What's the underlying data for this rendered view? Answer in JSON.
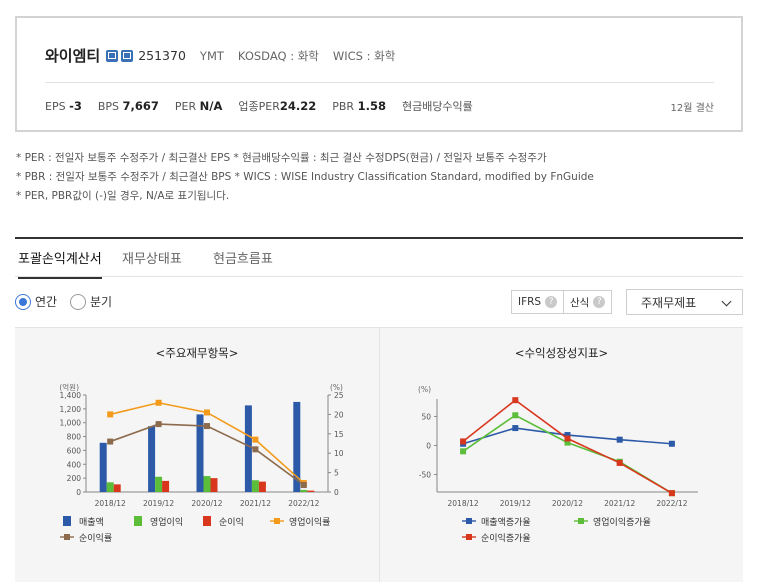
{
  "company": {
    "name": "와이엠티",
    "icons": [
      "doc-icon",
      "building-icon"
    ],
    "code": "251370",
    "ticker": "YMT",
    "market": "KOSDAQ : 화학",
    "wics": "WICS : 화학"
  },
  "metrics": [
    {
      "label": "EPS",
      "value": "-3"
    },
    {
      "label": "BPS",
      "value": "7,667"
    },
    {
      "label": "PER",
      "value": "N/A"
    },
    {
      "label": "업종PER",
      "value": "24.22"
    },
    {
      "label": "PBR",
      "value": "1.58"
    },
    {
      "label": "현금배당수익률",
      "value": ""
    }
  ],
  "fiscal_note": "12월 결산",
  "notes": [
    "* PER : 전일자 보통주 수정주가 / 최근결산 EPS * 현금배당수익률 : 최근 결산 수정DPS(현금) / 전일자 보통주 수정주가",
    "* PBR : 전일자 보통주 수정주가 / 최근결산 BPS * WICS : WISE Industry Classification Standard, modified by FnGuide",
    "* PER, PBR값이 (-)일 경우, N/A로 표기됩니다."
  ],
  "tabs": [
    "포괄손익계산서",
    "재무상태표",
    "현금흐름표"
  ],
  "period_options": [
    {
      "label": "연간",
      "selected": true
    },
    {
      "label": "분기",
      "selected": false
    }
  ],
  "chips": [
    "IFRS",
    "산식"
  ],
  "help_glyph": "?",
  "select_value": "주재무제표",
  "colors": {
    "blue": "#2c5aa8",
    "green": "#5bbd3a",
    "red": "#d8371e",
    "orange": "#f39a1b",
    "brown": "#8c6a4c"
  },
  "chart_data": [
    {
      "type": "bar",
      "title": "<주요재무항목>",
      "left_unit": "(억원)",
      "right_unit": "(%)",
      "categories": [
        "2018/12",
        "2019/12",
        "2020/12",
        "2021/12",
        "2022/12"
      ],
      "ylim": [
        0,
        1400
      ],
      "yticks": [
        0,
        200,
        400,
        600,
        800,
        1000,
        1200,
        1400
      ],
      "ytick_labels": [
        "0",
        "200",
        "400",
        "600",
        "800",
        "1,000",
        "1,200",
        "1,400"
      ],
      "y2lim": [
        0,
        25
      ],
      "y2ticks": [
        0,
        5,
        10,
        15,
        20,
        25
      ],
      "series": [
        {
          "name": "매출액",
          "type": "bar",
          "axis": "left",
          "color": "#2c5aa8",
          "values": [
            710,
            950,
            1120,
            1250,
            1300
          ]
        },
        {
          "name": "영업이익",
          "type": "bar",
          "axis": "left",
          "color": "#5bbd3a",
          "values": [
            140,
            220,
            230,
            170,
            30
          ]
        },
        {
          "name": "순이익",
          "type": "bar",
          "axis": "left",
          "color": "#d8371e",
          "values": [
            110,
            160,
            200,
            150,
            20
          ]
        },
        {
          "name": "영업이익률",
          "type": "line",
          "axis": "right",
          "color": "#f39a1b",
          "values": [
            20,
            23,
            20.5,
            13.5,
            2.3
          ]
        },
        {
          "name": "순이익률",
          "type": "line",
          "axis": "right",
          "color": "#8c6a4c",
          "values": [
            13,
            17.5,
            17,
            11,
            1.8
          ]
        }
      ],
      "legend_position": "bottom"
    },
    {
      "type": "line",
      "title": "<수익성장성지표>",
      "unit": "(%)",
      "categories": [
        "2018/12",
        "2019/12",
        "2020/12",
        "2021/12",
        "2022/12"
      ],
      "ylim": [
        -80,
        80
      ],
      "yticks": [
        -50,
        0,
        50
      ],
      "series": [
        {
          "name": "매출액증가율",
          "color": "#2c5aa8",
          "values": [
            3,
            30,
            18,
            10,
            3
          ]
        },
        {
          "name": "영업이익증가율",
          "color": "#5bbd3a",
          "values": [
            -10,
            52,
            5,
            -28,
            -82
          ]
        },
        {
          "name": "순이익증가율",
          "color": "#d8371e",
          "values": [
            7,
            78,
            12,
            -30,
            -82
          ]
        }
      ],
      "legend_position": "bottom"
    }
  ]
}
